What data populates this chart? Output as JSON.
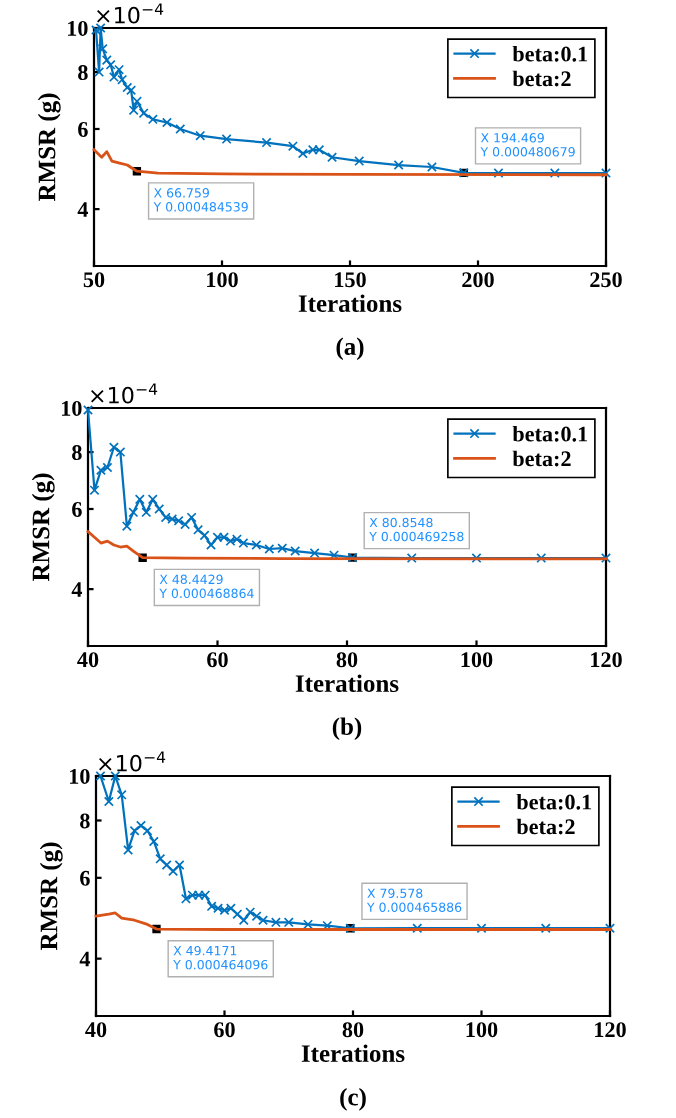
{
  "chart_data": [
    {
      "type": "line",
      "xlabel": "Iterations",
      "ylabel": "RMSR (g)",
      "log": "y",
      "xlim": [
        50,
        250
      ],
      "xticks": [
        50,
        100,
        150,
        200,
        250
      ],
      "ylim": [
        3,
        10
      ],
      "yticks": [
        4,
        6,
        8,
        10
      ],
      "legend": "top right",
      "annotations": [
        "×10$^{−4}$",
        "(a)",
        {
          "text": "X 66.759\nY 0.000484539",
          "x": 66.759,
          "y": 4.84539
        },
        {
          "text": "X 194.469\nY 0.000480679",
          "x": 194.469,
          "y": 4.80679
        }
      ],
      "series": [
        {
          "name": "beta:0.1",
          "color": "#0072bd",
          "marker": "cross",
          "x": [
            50.8,
            52,
            52.6,
            53.4,
            55,
            56.5,
            57.8,
            59.8,
            61,
            63,
            64.5,
            65.5,
            66.8,
            69.4,
            73,
            78.5,
            83.7,
            91.5,
            101.8,
            117.4,
            127.7,
            131.6,
            135.5,
            138,
            143,
            153.6,
            169,
            182,
            194.469,
            208,
            230,
            250
          ],
          "values": [
            9.9,
            8.0,
            10,
            9.0,
            8.5,
            8.3,
            7.8,
            8.1,
            7.7,
            7.4,
            7.3,
            6.6,
            6.9,
            6.5,
            6.3,
            6.2,
            6.0,
            5.8,
            5.7,
            5.6,
            5.5,
            5.3,
            5.4,
            5.4,
            5.2,
            5.1,
            5.0,
            4.95,
            4.80679,
            4.8,
            4.8,
            4.8
          ]
        },
        {
          "name": "beta:2",
          "color": "#d95319",
          "marker": "none",
          "x": [
            50,
            53,
            55,
            57,
            60,
            63,
            66.759,
            75,
            100,
            150,
            250
          ],
          "values": [
            5.4,
            5.2,
            5.35,
            5.1,
            5.05,
            5.0,
            4.84539,
            4.8,
            4.78,
            4.77,
            4.76
          ]
        }
      ]
    },
    {
      "type": "line",
      "xlabel": "Iterations",
      "ylabel": "RMSR (g)",
      "log": "y",
      "xlim": [
        40,
        120
      ],
      "xticks": [
        40,
        60,
        80,
        100,
        120
      ],
      "ylim": [
        3,
        10
      ],
      "yticks": [
        4,
        6,
        8,
        10
      ],
      "legend": "top right",
      "annotations": [
        "×10$^{−4}$",
        "(b)",
        {
          "text": "X 48.4429\nY 0.000468864",
          "x": 48.4429,
          "y": 4.68864
        },
        {
          "text": "X 80.8548\nY 0.000469258",
          "x": 80.8548,
          "y": 4.69258
        }
      ],
      "series": [
        {
          "name": "beta:0.1",
          "color": "#0072bd",
          "marker": "cross",
          "x": [
            40,
            41,
            42,
            43,
            44,
            45,
            46,
            47,
            48,
            49,
            50,
            51,
            52,
            53,
            54,
            55,
            56,
            57,
            58,
            59,
            60,
            61,
            62,
            63,
            64,
            66,
            68,
            70,
            72,
            75,
            78,
            80.8548,
            90,
            100,
            110,
            120
          ],
          "values": [
            9.9,
            6.6,
            7.3,
            7.4,
            8.2,
            8.0,
            5.5,
            5.9,
            6.3,
            5.9,
            6.3,
            6.0,
            5.75,
            5.7,
            5.65,
            5.55,
            5.75,
            5.4,
            5.25,
            5.0,
            5.2,
            5.2,
            5.1,
            5.15,
            5.05,
            5.0,
            4.9,
            4.92,
            4.85,
            4.8,
            4.75,
            4.69258,
            4.68,
            4.68,
            4.68,
            4.68
          ]
        },
        {
          "name": "beta:2",
          "color": "#d95319",
          "marker": "none",
          "x": [
            40,
            41,
            42,
            43,
            44,
            45,
            46,
            47,
            48.4429,
            55,
            70,
            120
          ],
          "values": [
            5.35,
            5.2,
            5.05,
            5.1,
            5.0,
            4.95,
            4.97,
            4.85,
            4.68864,
            4.68,
            4.67,
            4.66
          ]
        }
      ]
    },
    {
      "type": "line",
      "xlabel": "Iterations",
      "ylabel": "RMSR (g)",
      "log": "y",
      "xlim": [
        40,
        120
      ],
      "xticks": [
        40,
        60,
        80,
        100,
        120
      ],
      "ylim": [
        3,
        10
      ],
      "yticks": [
        4,
        6,
        8,
        10
      ],
      "legend": "top right",
      "annotations": [
        "×10$^{−4}$",
        "(c)",
        {
          "text": "X 49.4171\nY 0.000464096",
          "x": 49.4171,
          "y": 4.64096
        },
        {
          "text": "X 79.578\nY 0.000465886",
          "x": 79.578,
          "y": 4.65886
        }
      ],
      "series": [
        {
          "name": "beta:0.1",
          "color": "#0072bd",
          "marker": "cross",
          "x": [
            40.7,
            42,
            43,
            44,
            45,
            46,
            47,
            48,
            49,
            50,
            51,
            52,
            53,
            54,
            55,
            56,
            57,
            58,
            59,
            60,
            61,
            62,
            63,
            64,
            65,
            66,
            68,
            70,
            73,
            76,
            79.578,
            90,
            100,
            110,
            120
          ],
          "values": [
            10,
            8.8,
            10,
            9.1,
            6.9,
            7.6,
            7.8,
            7.6,
            7.2,
            6.6,
            6.4,
            6.2,
            6.4,
            5.4,
            5.5,
            5.5,
            5.5,
            5.2,
            5.15,
            5.1,
            5.15,
            5.0,
            4.85,
            5.05,
            4.95,
            4.85,
            4.8,
            4.8,
            4.75,
            4.72,
            4.65886,
            4.66,
            4.66,
            4.66,
            4.66
          ]
        },
        {
          "name": "beta:2",
          "color": "#d95319",
          "marker": "none",
          "x": [
            40,
            42,
            43,
            44,
            46,
            48,
            49.4171,
            60,
            80,
            120
          ],
          "values": [
            4.95,
            5.0,
            5.03,
            4.9,
            4.85,
            4.75,
            4.64096,
            4.63,
            4.63,
            4.63
          ]
        }
      ]
    }
  ]
}
